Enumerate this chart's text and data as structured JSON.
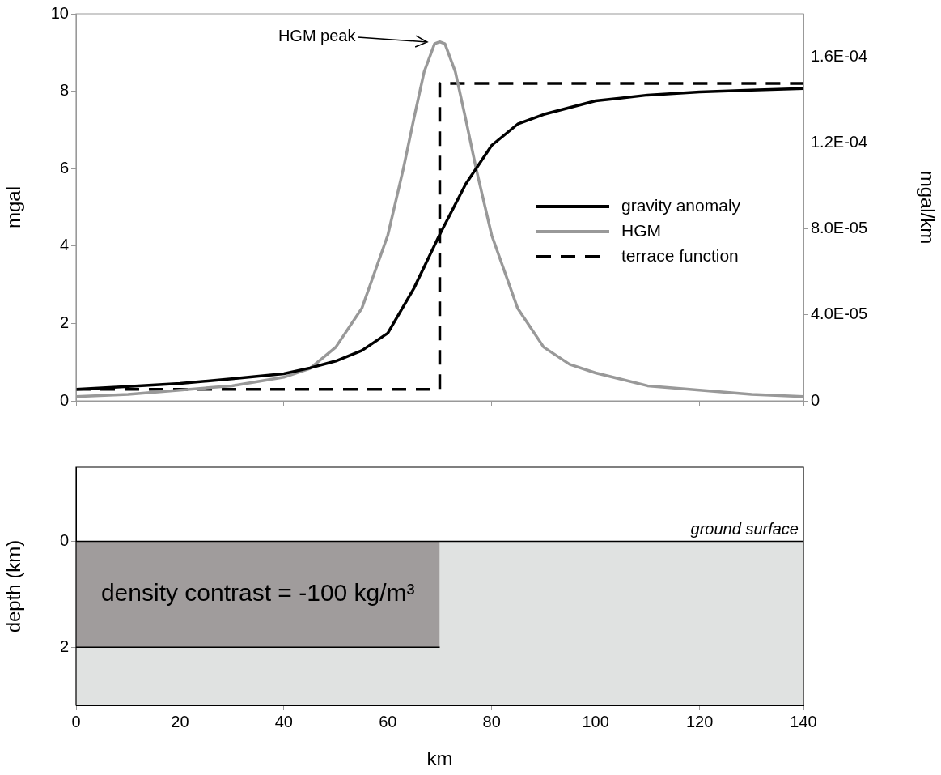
{
  "chart_data": [
    {
      "type": "line",
      "ylabel": "mgal",
      "y2label": "mgal/km",
      "xlim": [
        0,
        140
      ],
      "xticks": [
        0,
        20,
        40,
        60,
        80,
        100,
        120,
        140
      ],
      "ylim": [
        0,
        10
      ],
      "yticks": [
        0,
        2,
        4,
        6,
        8,
        10
      ],
      "y2lim": [
        0,
        0.00018
      ],
      "y2ticks": [
        0,
        {
          "value": 4e-05,
          "label": "4.0E-05"
        },
        {
          "value": 8e-05,
          "label": "8.0E-05"
        },
        {
          "value": 0.00012,
          "label": "1.2E-04"
        },
        {
          "value": 0.00016,
          "label": "1.6E-04"
        }
      ],
      "tick_labels": "y",
      "grid": false,
      "legend": "right",
      "annotations": [
        "HGM peak"
      ],
      "series": [
        {
          "name": "gravity anomaly",
          "color": "#000000",
          "x": [
            0,
            10,
            20,
            30,
            40,
            45,
            50,
            55,
            60,
            65,
            70,
            75,
            80,
            85,
            90,
            100,
            110,
            120,
            130,
            140
          ],
          "values": [
            0.3,
            0.37,
            0.45,
            0.57,
            0.7,
            0.85,
            1.03,
            1.3,
            1.75,
            2.9,
            4.3,
            5.6,
            6.6,
            7.15,
            7.4,
            7.75,
            7.9,
            7.98,
            8.03,
            8.07
          ]
        },
        {
          "name": "HGM",
          "color": "#999999",
          "axis": "y2",
          "x": [
            0,
            10,
            20,
            30,
            40,
            45,
            50,
            55,
            60,
            63,
            65,
            67,
            69,
            70,
            71,
            73,
            75,
            77,
            80,
            85,
            90,
            95,
            100,
            110,
            120,
            130,
            140
          ],
          "values": [
            2e-06,
            3e-06,
            5e-06,
            7e-06,
            1.1e-05,
            1.5e-05,
            2.5e-05,
            4.3e-05,
            7.7e-05,
            0.000108,
            0.000131,
            0.000153,
            0.000166,
            0.000167,
            0.000166,
            0.000153,
            0.000131,
            0.000108,
            7.7e-05,
            4.3e-05,
            2.5e-05,
            1.7e-05,
            1.3e-05,
            7e-06,
            5e-06,
            3e-06,
            2e-06
          ]
        },
        {
          "name": "terrace function",
          "color": "#000000",
          "line_style": "dashed",
          "x": [
            0,
            70,
            70,
            140
          ],
          "values": [
            0.3,
            0.3,
            8.2,
            8.2
          ]
        }
      ]
    },
    {
      "type": "area",
      "xlabel": "km",
      "ylabel": "depth (km)",
      "xlim": [
        0,
        140
      ],
      "xticks": [
        0,
        20,
        40,
        60,
        80,
        100,
        120,
        140
      ],
      "ylim": [
        3.1,
        -1.4
      ],
      "yticks": [
        0,
        2
      ],
      "grid": false,
      "bands": [
        {
          "axis": "y",
          "from": 0,
          "to": 3.1,
          "color": "#e0e2e1"
        }
      ],
      "ref_lines": [
        {
          "axis": "y",
          "value": 0,
          "label": "ground surface",
          "color": "#000000"
        }
      ],
      "annotations": [
        "density contrast = -100 kg/m³"
      ],
      "series": [
        {
          "color": "#a09c9c",
          "x": [
            0,
            70
          ],
          "values": [
            2,
            2
          ]
        }
      ]
    }
  ]
}
